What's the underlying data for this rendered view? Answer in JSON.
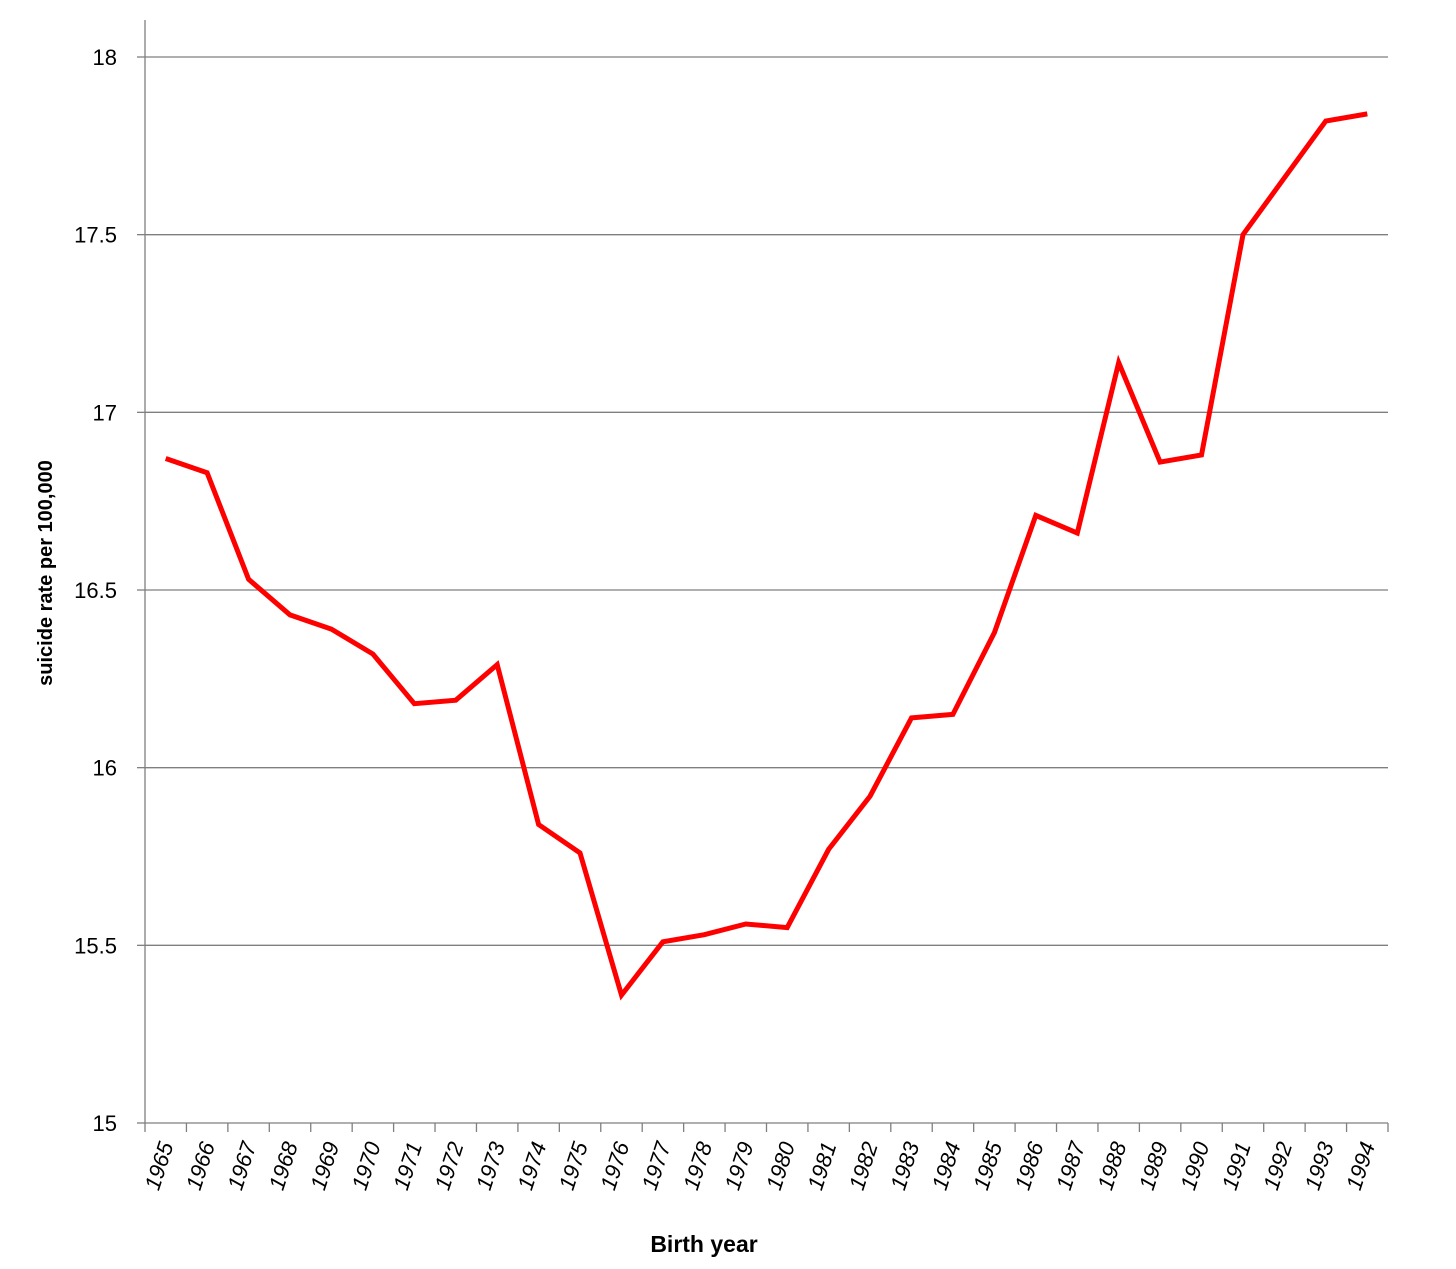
{
  "chart_data": {
    "type": "line",
    "title": "",
    "xlabel": "Birth year",
    "ylabel": "suicide rate per 100,000",
    "ylim": [
      15,
      18
    ],
    "yticks": [
      "15",
      "15.5",
      "16",
      "16.5",
      "17",
      "17.5",
      "18"
    ],
    "grid": "horizontal",
    "legend": "none",
    "categories": [
      "1965",
      "1966",
      "1967",
      "1968",
      "1969",
      "1970",
      "1971",
      "1972",
      "1973",
      "1974",
      "1975",
      "1976",
      "1977",
      "1978",
      "1979",
      "1980",
      "1981",
      "1982",
      "1983",
      "1984",
      "1985",
      "1986",
      "1987",
      "1988",
      "1989",
      "1990",
      "1991",
      "1992",
      "1993",
      "1994"
    ],
    "series": [
      {
        "color": "#ff0000",
        "values": [
          16.87,
          16.83,
          16.53,
          16.43,
          16.39,
          16.32,
          16.18,
          16.19,
          16.29,
          15.84,
          15.76,
          15.36,
          15.51,
          15.53,
          15.56,
          15.55,
          15.77,
          15.92,
          16.14,
          16.15,
          16.38,
          16.71,
          16.66,
          17.14,
          16.86,
          16.88,
          17.5,
          17.66,
          17.82,
          17.84
        ]
      }
    ]
  },
  "colors": {
    "line": "#ff0000",
    "grid": "#7f7f7f",
    "axis": "#7f7f7f",
    "text": "#000000"
  }
}
